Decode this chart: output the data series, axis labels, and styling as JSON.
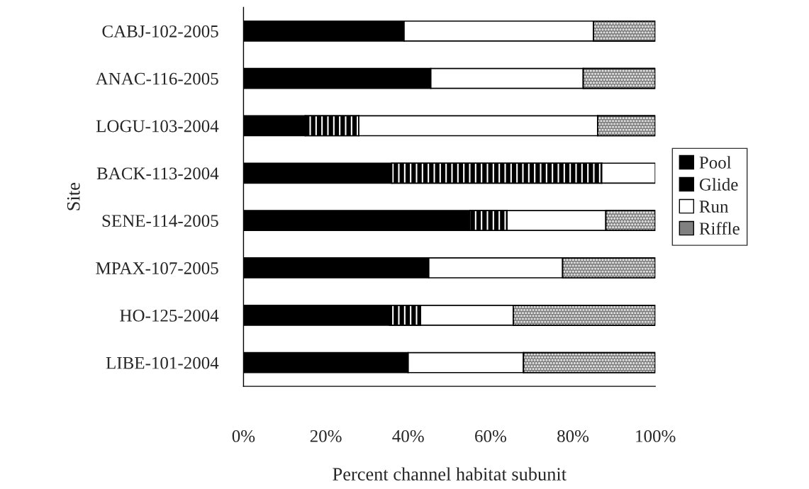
{
  "chart_data": {
    "type": "bar",
    "orientation": "horizontal",
    "stacked": true,
    "xlabel": "Percent channel habitat subunit",
    "ylabel": "Site",
    "categories": [
      "CABJ-102-2005",
      "ANAC-116-2005",
      "LOGU-103-2004",
      "BACK-113-2004",
      "SENE-114-2005",
      "MPAX-107-2005",
      "HO-125-2004",
      "LIBE-101-2004"
    ],
    "series": [
      {
        "name": "Pool",
        "color": "#000000",
        "values": [
          39,
          45.5,
          15,
          36,
          55,
          45,
          35.5,
          40
        ]
      },
      {
        "name": "Glide",
        "color": "#000000",
        "values": [
          0,
          0,
          13,
          51,
          9,
          0,
          7.5,
          0
        ]
      },
      {
        "name": "Run",
        "color": "#ffffff",
        "values": [
          46,
          37,
          58,
          13,
          24,
          32.5,
          22.5,
          28
        ]
      },
      {
        "name": "Riffle",
        "color": "#808080",
        "values": [
          15,
          17.5,
          14,
          0,
          12,
          22.5,
          34.5,
          32
        ]
      }
    ],
    "xlim": [
      0,
      100
    ],
    "xticks": [
      {
        "value": 0,
        "label": "0%"
      },
      {
        "value": 20,
        "label": "20%"
      },
      {
        "value": 40,
        "label": "40%"
      },
      {
        "value": 60,
        "label": "60%"
      },
      {
        "value": 80,
        "label": "80%"
      },
      {
        "value": 100,
        "label": "100%"
      }
    ],
    "grid": false,
    "legend": "right"
  }
}
